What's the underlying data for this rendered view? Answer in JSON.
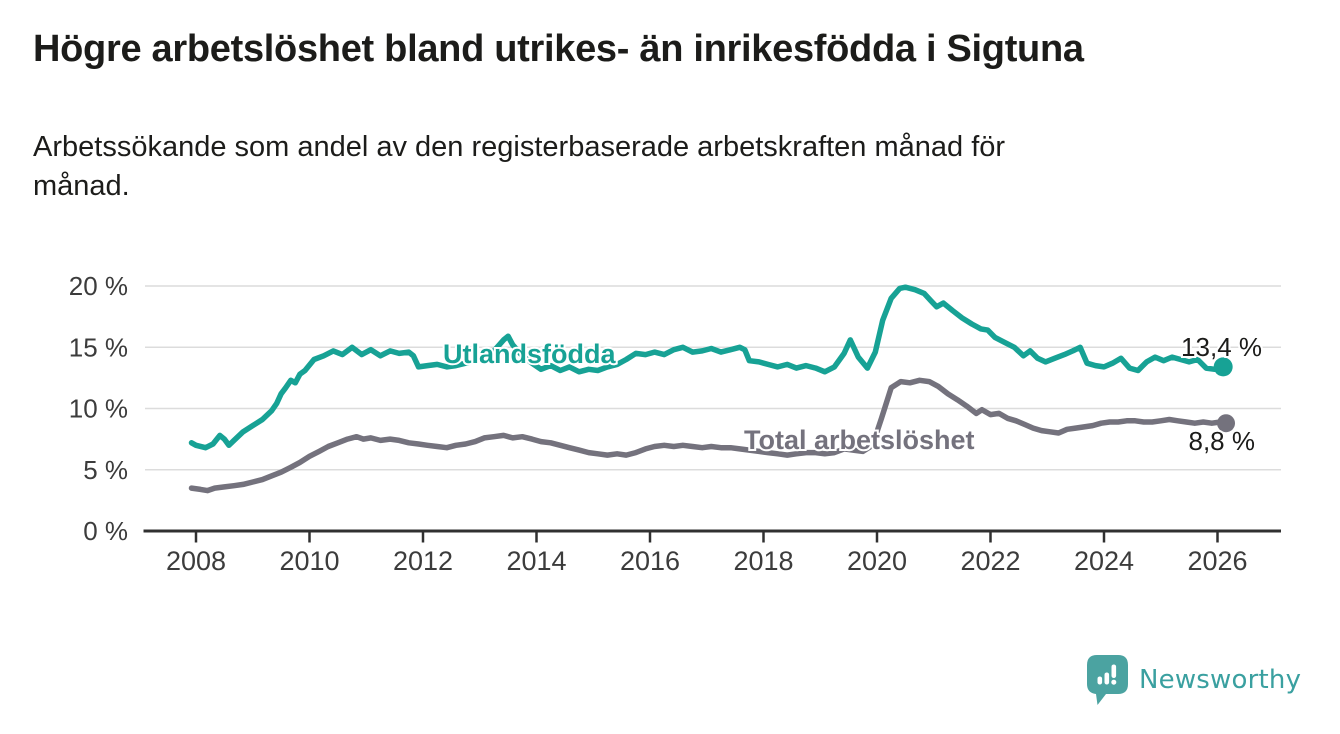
{
  "header": {
    "title": "Högre arbetslöshet bland utrikes- än inrikesfödda i Sigtuna",
    "subtitle": "Arbetssökande som andel av den registerbaserade arbetskraften månad för\nmånad."
  },
  "branding": {
    "logo_text": "Newsworthy",
    "logo_icon": "speech-bubble-bar-chart-icon"
  },
  "colors": {
    "foreign_born_line": "#17a295",
    "total_line": "#74727d",
    "grid": "#dcdcdc",
    "axis": "#303030",
    "axis_text": "#3c3c3c",
    "label_text": "#1c1c1a",
    "logo_bubble": "#4ba3a1",
    "logo_text": "#3aa0a0"
  },
  "chart_data": {
    "type": "line",
    "title": "Högre arbetslöshet bland utrikes- än inrikesfödda i Sigtuna",
    "subtitle": "Arbetssökande som andel av den registerbaserade arbetskraften månad för månad.",
    "xlabel": "",
    "ylabel": "",
    "grid": "horizontal",
    "legend_position": "inline-labels",
    "xlim": [
      2007.1,
      2027.1
    ],
    "ylim": [
      0,
      21.5
    ],
    "x_ticks": [
      {
        "value": 2008,
        "label": "2008"
      },
      {
        "value": 2010,
        "label": "2010"
      },
      {
        "value": 2012,
        "label": "2012"
      },
      {
        "value": 2014,
        "label": "2014"
      },
      {
        "value": 2016,
        "label": "2016"
      },
      {
        "value": 2018,
        "label": "2018"
      },
      {
        "value": 2020,
        "label": "2020"
      },
      {
        "value": 2022,
        "label": "2022"
      },
      {
        "value": 2024,
        "label": "2024"
      },
      {
        "value": 2026,
        "label": "2026"
      }
    ],
    "y_ticks": [
      {
        "value": 0,
        "label": "0 %"
      },
      {
        "value": 5,
        "label": "5 %"
      },
      {
        "value": 10,
        "label": "10 %"
      },
      {
        "value": 15,
        "label": "15 %"
      },
      {
        "value": 20,
        "label": "20 %"
      }
    ],
    "series": [
      {
        "name": "Utlandsfödda",
        "color": "#17a295",
        "end_label": "13,4 %",
        "end_value": 13.4,
        "points": [
          [
            2007.92,
            7.2
          ],
          [
            2008.0,
            7.0
          ],
          [
            2008.17,
            6.8
          ],
          [
            2008.3,
            7.1
          ],
          [
            2008.42,
            7.8
          ],
          [
            2008.5,
            7.5
          ],
          [
            2008.58,
            7.0
          ],
          [
            2008.67,
            7.4
          ],
          [
            2008.83,
            8.1
          ],
          [
            2009.0,
            8.6
          ],
          [
            2009.17,
            9.1
          ],
          [
            2009.33,
            9.8
          ],
          [
            2009.42,
            10.4
          ],
          [
            2009.5,
            11.2
          ],
          [
            2009.58,
            11.7
          ],
          [
            2009.67,
            12.3
          ],
          [
            2009.75,
            12.1
          ],
          [
            2009.83,
            12.8
          ],
          [
            2009.92,
            13.1
          ],
          [
            2010.08,
            14.0
          ],
          [
            2010.25,
            14.3
          ],
          [
            2010.42,
            14.7
          ],
          [
            2010.58,
            14.4
          ],
          [
            2010.75,
            15.0
          ],
          [
            2010.92,
            14.4
          ],
          [
            2011.08,
            14.8
          ],
          [
            2011.25,
            14.3
          ],
          [
            2011.42,
            14.7
          ],
          [
            2011.58,
            14.5
          ],
          [
            2011.75,
            14.6
          ],
          [
            2011.83,
            14.3
          ],
          [
            2011.92,
            13.4
          ],
          [
            2012.08,
            13.5
          ],
          [
            2012.25,
            13.6
          ],
          [
            2012.42,
            13.4
          ],
          [
            2012.58,
            13.5
          ],
          [
            2012.75,
            13.7
          ],
          [
            2012.92,
            13.9
          ],
          [
            2013.08,
            14.2
          ],
          [
            2013.25,
            14.7
          ],
          [
            2013.42,
            15.6
          ],
          [
            2013.5,
            15.9
          ],
          [
            2013.58,
            15.2
          ],
          [
            2013.75,
            14.3
          ],
          [
            2013.92,
            13.7
          ],
          [
            2014.08,
            13.2
          ],
          [
            2014.25,
            13.5
          ],
          [
            2014.42,
            13.1
          ],
          [
            2014.58,
            13.4
          ],
          [
            2014.75,
            13.0
          ],
          [
            2014.92,
            13.2
          ],
          [
            2015.08,
            13.1
          ],
          [
            2015.25,
            13.4
          ],
          [
            2015.42,
            13.6
          ],
          [
            2015.58,
            14.0
          ],
          [
            2015.75,
            14.5
          ],
          [
            2015.92,
            14.4
          ],
          [
            2016.08,
            14.6
          ],
          [
            2016.25,
            14.4
          ],
          [
            2016.42,
            14.8
          ],
          [
            2016.58,
            15.0
          ],
          [
            2016.75,
            14.6
          ],
          [
            2016.92,
            14.7
          ],
          [
            2017.08,
            14.9
          ],
          [
            2017.25,
            14.6
          ],
          [
            2017.42,
            14.8
          ],
          [
            2017.58,
            15.0
          ],
          [
            2017.67,
            14.8
          ],
          [
            2017.75,
            13.9
          ],
          [
            2017.92,
            13.8
          ],
          [
            2018.08,
            13.6
          ],
          [
            2018.25,
            13.4
          ],
          [
            2018.42,
            13.6
          ],
          [
            2018.58,
            13.3
          ],
          [
            2018.75,
            13.5
          ],
          [
            2018.92,
            13.3
          ],
          [
            2019.08,
            13.0
          ],
          [
            2019.25,
            13.4
          ],
          [
            2019.42,
            14.5
          ],
          [
            2019.53,
            15.6
          ],
          [
            2019.67,
            14.2
          ],
          [
            2019.83,
            13.3
          ],
          [
            2019.97,
            14.6
          ],
          [
            2020.1,
            17.2
          ],
          [
            2020.25,
            19.0
          ],
          [
            2020.4,
            19.8
          ],
          [
            2020.5,
            19.9
          ],
          [
            2020.67,
            19.7
          ],
          [
            2020.83,
            19.4
          ],
          [
            2020.95,
            18.8
          ],
          [
            2021.05,
            18.3
          ],
          [
            2021.17,
            18.6
          ],
          [
            2021.33,
            18.0
          ],
          [
            2021.5,
            17.4
          ],
          [
            2021.67,
            16.9
          ],
          [
            2021.83,
            16.5
          ],
          [
            2021.95,
            16.4
          ],
          [
            2022.08,
            15.8
          ],
          [
            2022.25,
            15.4
          ],
          [
            2022.42,
            15.0
          ],
          [
            2022.58,
            14.3
          ],
          [
            2022.7,
            14.7
          ],
          [
            2022.83,
            14.1
          ],
          [
            2022.97,
            13.8
          ],
          [
            2023.13,
            14.1
          ],
          [
            2023.3,
            14.4
          ],
          [
            2023.45,
            14.7
          ],
          [
            2023.58,
            15.0
          ],
          [
            2023.7,
            13.7
          ],
          [
            2023.85,
            13.5
          ],
          [
            2024.0,
            13.4
          ],
          [
            2024.15,
            13.7
          ],
          [
            2024.3,
            14.1
          ],
          [
            2024.45,
            13.3
          ],
          [
            2024.6,
            13.1
          ],
          [
            2024.75,
            13.8
          ],
          [
            2024.9,
            14.2
          ],
          [
            2025.05,
            13.9
          ],
          [
            2025.2,
            14.2
          ],
          [
            2025.35,
            14.0
          ],
          [
            2025.5,
            13.8
          ],
          [
            2025.65,
            14.0
          ],
          [
            2025.8,
            13.3
          ],
          [
            2025.95,
            13.2
          ],
          [
            2026.1,
            13.4
          ]
        ]
      },
      {
        "name": "Total arbetslöshet",
        "color": "#74727d",
        "end_label": "8,8 %",
        "end_value": 8.8,
        "points": [
          [
            2007.92,
            3.5
          ],
          [
            2008.08,
            3.4
          ],
          [
            2008.2,
            3.3
          ],
          [
            2008.33,
            3.5
          ],
          [
            2008.5,
            3.6
          ],
          [
            2008.67,
            3.7
          ],
          [
            2008.83,
            3.8
          ],
          [
            2009.0,
            4.0
          ],
          [
            2009.17,
            4.2
          ],
          [
            2009.33,
            4.5
          ],
          [
            2009.5,
            4.8
          ],
          [
            2009.67,
            5.2
          ],
          [
            2009.83,
            5.6
          ],
          [
            2010.0,
            6.1
          ],
          [
            2010.17,
            6.5
          ],
          [
            2010.33,
            6.9
          ],
          [
            2010.5,
            7.2
          ],
          [
            2010.67,
            7.5
          ],
          [
            2010.83,
            7.7
          ],
          [
            2010.95,
            7.5
          ],
          [
            2011.08,
            7.6
          ],
          [
            2011.25,
            7.4
          ],
          [
            2011.42,
            7.5
          ],
          [
            2011.58,
            7.4
          ],
          [
            2011.75,
            7.2
          ],
          [
            2011.92,
            7.1
          ],
          [
            2012.08,
            7.0
          ],
          [
            2012.25,
            6.9
          ],
          [
            2012.42,
            6.8
          ],
          [
            2012.58,
            7.0
          ],
          [
            2012.75,
            7.1
          ],
          [
            2012.92,
            7.3
          ],
          [
            2013.08,
            7.6
          ],
          [
            2013.25,
            7.7
          ],
          [
            2013.42,
            7.8
          ],
          [
            2013.58,
            7.6
          ],
          [
            2013.75,
            7.7
          ],
          [
            2013.92,
            7.5
          ],
          [
            2014.08,
            7.3
          ],
          [
            2014.25,
            7.2
          ],
          [
            2014.42,
            7.0
          ],
          [
            2014.58,
            6.8
          ],
          [
            2014.75,
            6.6
          ],
          [
            2014.92,
            6.4
          ],
          [
            2015.08,
            6.3
          ],
          [
            2015.25,
            6.2
          ],
          [
            2015.42,
            6.3
          ],
          [
            2015.58,
            6.2
          ],
          [
            2015.75,
            6.4
          ],
          [
            2015.92,
            6.7
          ],
          [
            2016.08,
            6.9
          ],
          [
            2016.25,
            7.0
          ],
          [
            2016.42,
            6.9
          ],
          [
            2016.58,
            7.0
          ],
          [
            2016.75,
            6.9
          ],
          [
            2016.92,
            6.8
          ],
          [
            2017.08,
            6.9
          ],
          [
            2017.25,
            6.8
          ],
          [
            2017.42,
            6.8
          ],
          [
            2017.58,
            6.7
          ],
          [
            2017.75,
            6.6
          ],
          [
            2017.92,
            6.5
          ],
          [
            2018.08,
            6.4
          ],
          [
            2018.25,
            6.3
          ],
          [
            2018.42,
            6.2
          ],
          [
            2018.58,
            6.3
          ],
          [
            2018.75,
            6.4
          ],
          [
            2018.92,
            6.4
          ],
          [
            2019.08,
            6.3
          ],
          [
            2019.25,
            6.4
          ],
          [
            2019.42,
            6.7
          ],
          [
            2019.58,
            6.6
          ],
          [
            2019.75,
            6.5
          ],
          [
            2019.92,
            7.0
          ],
          [
            2020.08,
            9.2
          ],
          [
            2020.25,
            11.7
          ],
          [
            2020.42,
            12.2
          ],
          [
            2020.58,
            12.1
          ],
          [
            2020.75,
            12.3
          ],
          [
            2020.92,
            12.2
          ],
          [
            2021.08,
            11.8
          ],
          [
            2021.25,
            11.2
          ],
          [
            2021.42,
            10.7
          ],
          [
            2021.58,
            10.2
          ],
          [
            2021.75,
            9.6
          ],
          [
            2021.85,
            9.9
          ],
          [
            2022.0,
            9.5
          ],
          [
            2022.15,
            9.6
          ],
          [
            2022.3,
            9.2
          ],
          [
            2022.45,
            9.0
          ],
          [
            2022.6,
            8.7
          ],
          [
            2022.75,
            8.4
          ],
          [
            2022.9,
            8.2
          ],
          [
            2023.05,
            8.1
          ],
          [
            2023.2,
            8.0
          ],
          [
            2023.35,
            8.3
          ],
          [
            2023.5,
            8.4
          ],
          [
            2023.65,
            8.5
          ],
          [
            2023.8,
            8.6
          ],
          [
            2023.95,
            8.8
          ],
          [
            2024.1,
            8.9
          ],
          [
            2024.25,
            8.9
          ],
          [
            2024.4,
            9.0
          ],
          [
            2024.55,
            9.0
          ],
          [
            2024.7,
            8.9
          ],
          [
            2024.85,
            8.9
          ],
          [
            2025.0,
            9.0
          ],
          [
            2025.15,
            9.1
          ],
          [
            2025.3,
            9.0
          ],
          [
            2025.45,
            8.9
          ],
          [
            2025.6,
            8.8
          ],
          [
            2025.75,
            8.9
          ],
          [
            2025.9,
            8.8
          ],
          [
            2026.05,
            8.9
          ],
          [
            2026.15,
            8.8
          ]
        ]
      }
    ]
  }
}
